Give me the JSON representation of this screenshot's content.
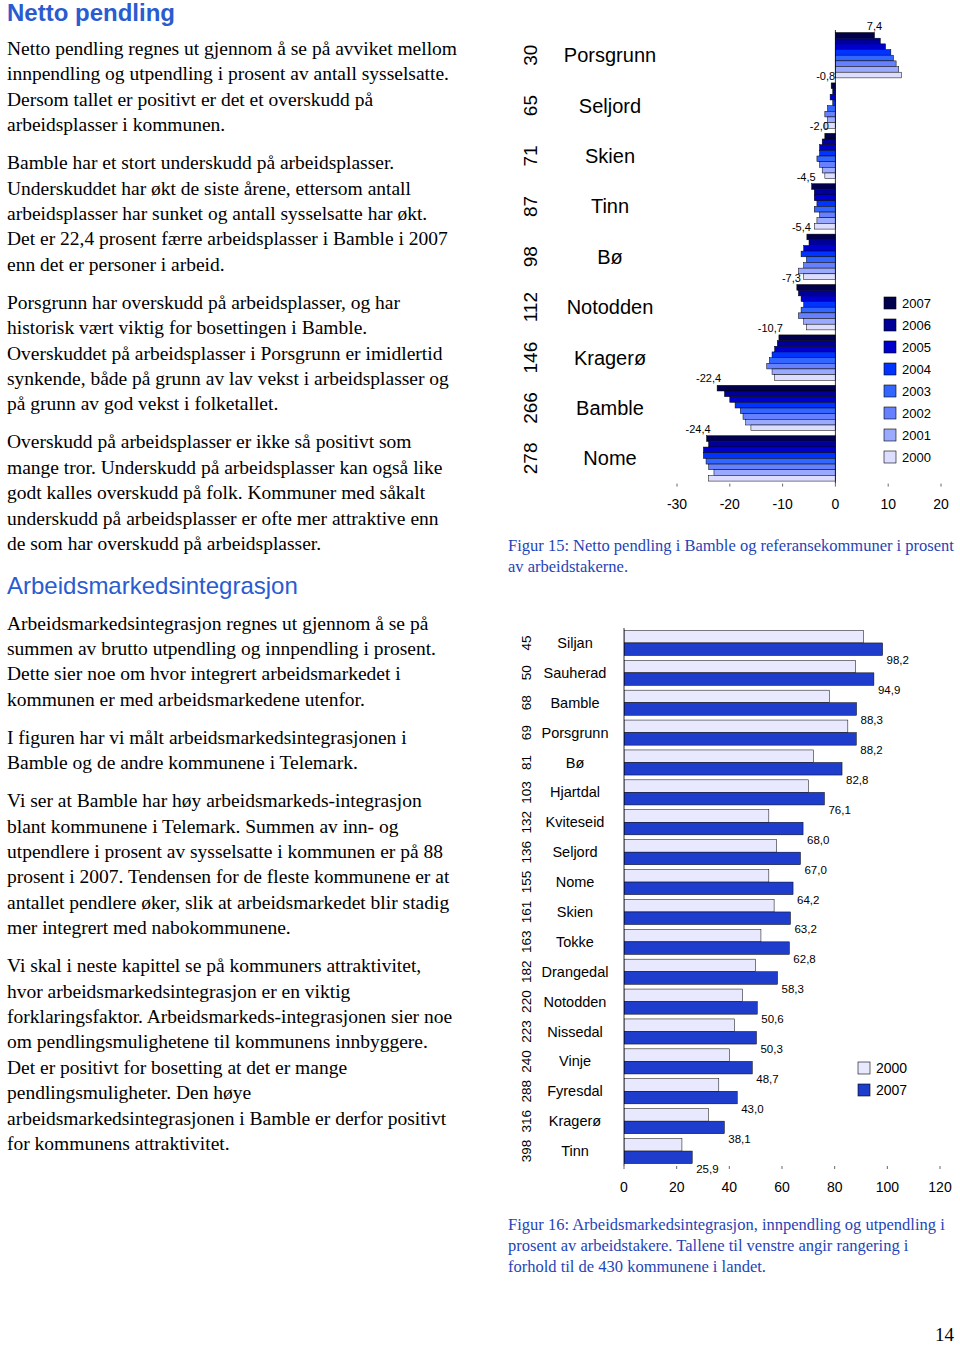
{
  "sections": [
    {
      "heading": "Netto pendling",
      "paragraphs": [
        "Netto pendling regnes ut gjennom å se på avviket mellom innpendling og utpendling i prosent av antall sysselsatte. Dersom tallet er positivt er det et overskudd på arbeidsplasser i kommunen.",
        "Bamble har et stort underskudd på arbeidsplasser. Underskuddet har økt de siste årene, ettersom antall arbeidsplasser har sunket og antall sysselsatte har økt. Det er 22,4 prosent færre arbeidsplasser i Bamble i 2007 enn det er personer i arbeid.",
        "Porsgrunn har overskudd på arbeidsplasser, og har historisk vært viktig for bosettingen i Bamble. Overskuddet på arbeidsplasser i Porsgrunn er imidlertid synkende, både på grunn av lav vekst i arbeidsplasser og på grunn av god vekst i folketallet.",
        "Overskudd på arbeidsplasser er ikke så positivt som mange tror. Underskudd på arbeidsplasser kan også like godt kalles overskudd på folk. Kommuner med såkalt underskudd på arbeidsplasser er ofte mer attraktive enn de som har overskudd på arbeidsplasser."
      ]
    },
    {
      "heading": "Arbeidsmarkedsintegrasjon",
      "paragraphs": [
        "Arbeidsmarkedsintegrasjon regnes ut gjennom å se på summen av brutto utpendling og innpendling i prosent. Dette sier noe om hvor integrert arbeidsmarkedet i kommunen er med arbeidsmarkedene utenfor.",
        "I figuren har vi målt arbeidsmarkedsintegrasjonen i Bamble og de andre kommunene i Telemark.",
        "Vi ser at Bamble har høy arbeidsmarkeds-integrasjon blant kommunene i Telemark. Summen av inn- og utpendlere i prosent av sysselsatte i kommunen er på 88 prosent i 2007. Tendensen for de fleste kommunene er at antallet pendlere øker, slik at arbeidsmarkedet blir stadig mer integrert med nabokommunene.",
        "Vi skal i neste kapittel se på kommuners attraktivitet, hvor arbeidsmarkedsintegrasjon er en viktig forklaringsfaktor. Arbeidsmarkeds-integrasjonen sier noe om pendlingsmulighetene til kommunens innbyggere. Det er positivt for bosetting at det er mange pendlingsmuligheter. Den høye arbeidsmarkedsintegrasjonen i Bamble er derfor positivt for kommunens attraktivitet."
      ]
    }
  ],
  "chart_data": [
    {
      "type": "bar",
      "orientation": "horizontal",
      "caption": "Figur 15: Netto pendling i Bamble og referansekommuner i prosent av arbeidstakerne.",
      "categories": [
        "Porsgrunn",
        "Seljord",
        "Skien",
        "Tinn",
        "Bø",
        "Notodden",
        "Kragerø",
        "Bamble",
        "Nome"
      ],
      "ranks": [
        30,
        65,
        71,
        87,
        98,
        112,
        146,
        266,
        278
      ],
      "xlim": [
        -30,
        20
      ],
      "xticks": [
        -30,
        -20,
        -10,
        0,
        10,
        20
      ],
      "legend": "right",
      "data_labels": true,
      "series": [
        {
          "name": "2007",
          "color": "#00004d",
          "values": [
            7.4,
            -0.8,
            -2.0,
            -4.5,
            -5.4,
            -7.3,
            -10.7,
            -22.4,
            -24.4
          ],
          "value_labels": [
            "7,4",
            "-0,8",
            "-2,0",
            "-4,5",
            "-5,4",
            "-7,3",
            "-10,7",
            "-22,4",
            "-24,4"
          ]
        },
        {
          "name": "2006",
          "color": "#000099",
          "values": [
            8.5,
            -0.5,
            -2.5,
            -4,
            -5,
            -7,
            -11,
            -21,
            -24
          ]
        },
        {
          "name": "2005",
          "color": "#0000cc",
          "values": [
            9.5,
            -1,
            -3,
            -4,
            -6,
            -6.5,
            -11.5,
            -20,
            -25
          ]
        },
        {
          "name": "2004",
          "color": "#0033ff",
          "values": [
            10.5,
            -0.5,
            -3,
            -3.5,
            -6.5,
            -6,
            -12,
            -19,
            -25
          ]
        },
        {
          "name": "2003",
          "color": "#3366ff",
          "values": [
            11,
            -1.5,
            -3.5,
            -4,
            -5.5,
            -6.5,
            -12.5,
            -18,
            -24.5
          ]
        },
        {
          "name": "2002",
          "color": "#6680ff",
          "values": [
            11.5,
            -2,
            -3,
            -3,
            -6,
            -7,
            -13,
            -17.5,
            -24
          ]
        },
        {
          "name": "2001",
          "color": "#99aaff",
          "values": [
            12,
            -1.5,
            -2.5,
            -3.5,
            -7,
            -6,
            -12,
            -17,
            -23
          ]
        },
        {
          "name": "2000",
          "color": "#ddddff",
          "values": [
            12.5,
            -2,
            -2,
            -4,
            -6,
            -5.5,
            -11.5,
            -16,
            -24
          ]
        }
      ]
    },
    {
      "type": "bar",
      "orientation": "horizontal",
      "caption": "Figur 16: Arbeidsmarkedsintegrasjon, innpendling og utpendling i prosent av arbeidstakere.   Tallene til venstre angir rangering i forhold til de 430 kommunene i landet.",
      "categories": [
        "Siljan",
        "Sauherad",
        "Bamble",
        "Porsgrunn",
        "Bø",
        "Hjartdal",
        "Kviteseid",
        "Seljord",
        "Nome",
        "Skien",
        "Tokke",
        "Drangedal",
        "Notodden",
        "Nissedal",
        "Vinje",
        "Fyresdal",
        "Kragerø",
        "Tinn"
      ],
      "ranks": [
        45,
        50,
        68,
        69,
        81,
        103,
        132,
        136,
        155,
        161,
        163,
        182,
        220,
        223,
        240,
        288,
        316,
        398
      ],
      "xlim": [
        0,
        120
      ],
      "xticks": [
        0,
        20,
        40,
        60,
        80,
        100,
        120
      ],
      "legend": "right",
      "data_labels": true,
      "series": [
        {
          "name": "2000",
          "color": "#e8e8ff",
          "values": [
            91,
            88,
            78,
            85,
            72,
            70,
            55,
            58,
            55,
            57,
            52,
            50,
            45,
            42,
            40,
            36,
            32,
            22
          ]
        },
        {
          "name": "2007",
          "color": "#1f3dcc",
          "values": [
            98.2,
            94.9,
            88.3,
            88.2,
            82.8,
            76.1,
            68.0,
            67.0,
            64.2,
            63.2,
            62.8,
            58.3,
            50.6,
            50.3,
            48.7,
            43.0,
            38.1,
            25.9
          ],
          "value_labels": [
            "98,2",
            "94,9",
            "88,3",
            "88,2",
            "82,8",
            "76,1",
            "68,0",
            "67,0",
            "64,2",
            "63,2",
            "62,8",
            "58,3",
            "50,6",
            "50,3",
            "48,7",
            "43,0",
            "38,1",
            "25,9"
          ]
        }
      ]
    }
  ],
  "page_number": "14"
}
